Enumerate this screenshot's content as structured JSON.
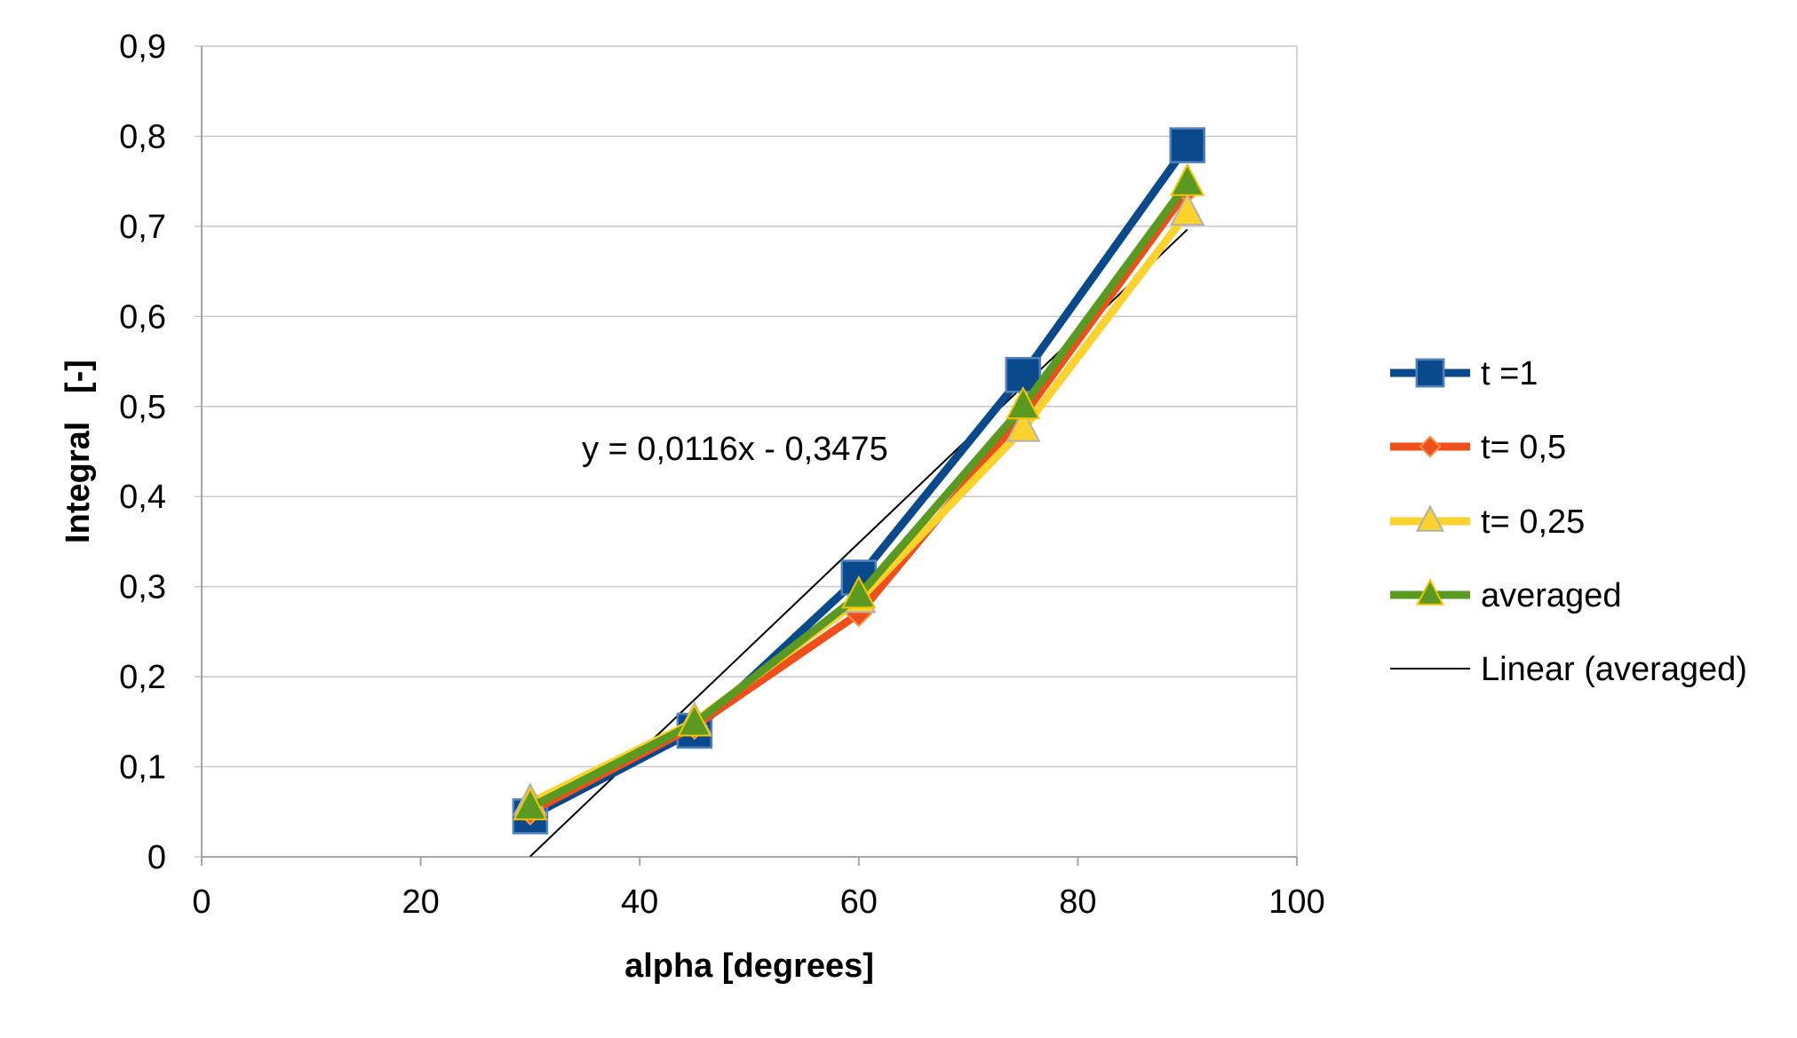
{
  "chart_data": {
    "type": "line",
    "title": "",
    "xlabel": "alpha [degrees]",
    "ylabel": "Integral   [-]",
    "xlim": [
      0,
      100
    ],
    "ylim": [
      0,
      0.9
    ],
    "x_ticks": [
      "0",
      "20",
      "40",
      "60",
      "80",
      "100"
    ],
    "y_ticks": [
      "0",
      "0,1",
      "0,2",
      "0,3",
      "0,4",
      "0,5",
      "0,6",
      "0,7",
      "0,8",
      "0,9"
    ],
    "grid": "horizontal",
    "legend_position": "right",
    "x": [
      30,
      45,
      60,
      75,
      90
    ],
    "series": [
      {
        "name": "t =1",
        "values": [
          0.045,
          0.14,
          0.31,
          0.535,
          0.79
        ],
        "color": "#0a4a8c",
        "marker": "square"
      },
      {
        "name": "t= 0,5",
        "values": [
          0.05,
          0.145,
          0.27,
          0.49,
          0.74
        ],
        "color": "#f04e1a",
        "marker": "diamond"
      },
      {
        "name": "t= 0,25",
        "values": [
          0.06,
          0.15,
          0.285,
          0.475,
          0.715
        ],
        "color": "#fcd22c",
        "marker": "triangle"
      },
      {
        "name": "averaged",
        "values": [
          0.055,
          0.148,
          0.29,
          0.5,
          0.748
        ],
        "color": "#5a9a23",
        "marker": "triangle"
      }
    ],
    "trendline": {
      "name": "Linear (averaged)",
      "slope": 0.0116,
      "intercept": -0.3475,
      "x_range": [
        30,
        90
      ],
      "color": "#000000",
      "equation": "y = 0,0116x - 0,3475"
    }
  }
}
